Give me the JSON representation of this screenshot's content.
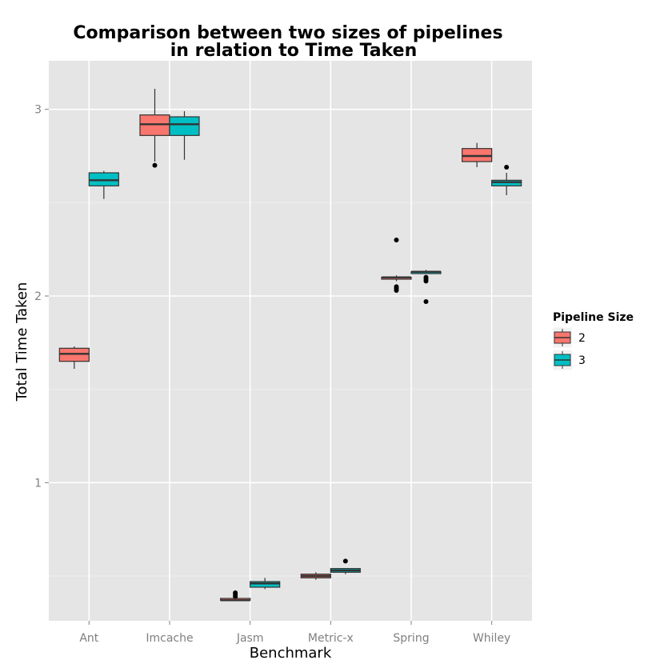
{
  "chart_data": {
    "type": "boxplot",
    "title": "Comparison between two sizes of pipelines\nin relation to Time Taken",
    "title_lines": [
      "Comparison between two sizes of pipelines",
      "in relation to Time Taken"
    ],
    "xlabel": "Benchmark",
    "ylabel": "Total Time Taken",
    "categories": [
      "Ant",
      "Imcache",
      "Jasm",
      "Metric-x",
      "Spring",
      "Whiley"
    ],
    "ylim": [
      0.26,
      3.26
    ],
    "yticks": [
      1,
      2,
      3
    ],
    "ytick_labels": [
      "1",
      "2",
      "3"
    ],
    "grid": true,
    "legend": {
      "title": "Pipeline Size",
      "placement": "right"
    },
    "series": [
      {
        "name": "2",
        "color": "#F8766D",
        "boxes": [
          {
            "category": "Ant",
            "min": 1.61,
            "q1": 1.65,
            "median": 1.69,
            "q3": 1.72,
            "max": 1.73,
            "outliers": []
          },
          {
            "category": "Imcache",
            "min": 2.72,
            "q1": 2.86,
            "median": 2.92,
            "q3": 2.97,
            "max": 3.11,
            "outliers": [
              2.7
            ]
          },
          {
            "category": "Jasm",
            "min": 0.37,
            "q1": 0.37,
            "median": 0.37,
            "q3": 0.38,
            "max": 0.38,
            "outliers": [
              0.39,
              0.4,
              0.41
            ]
          },
          {
            "category": "Metric-x",
            "min": 0.48,
            "q1": 0.49,
            "median": 0.5,
            "q3": 0.51,
            "max": 0.52,
            "outliers": []
          },
          {
            "category": "Spring",
            "min": 2.08,
            "q1": 2.09,
            "median": 2.1,
            "q3": 2.1,
            "max": 2.11,
            "outliers": [
              2.3,
              2.05,
              2.04,
              2.03
            ]
          },
          {
            "category": "Whiley",
            "min": 2.69,
            "q1": 2.72,
            "median": 2.75,
            "q3": 2.79,
            "max": 2.82,
            "outliers": []
          }
        ]
      },
      {
        "name": "3",
        "color": "#00BFC4",
        "boxes": [
          {
            "category": "Ant",
            "min": 2.52,
            "q1": 2.59,
            "median": 2.62,
            "q3": 2.66,
            "max": 2.67,
            "outliers": []
          },
          {
            "category": "Imcache",
            "min": 2.73,
            "q1": 2.86,
            "median": 2.92,
            "q3": 2.96,
            "max": 2.99,
            "outliers": []
          },
          {
            "category": "Jasm",
            "min": 0.43,
            "q1": 0.44,
            "median": 0.46,
            "q3": 0.47,
            "max": 0.49,
            "outliers": []
          },
          {
            "category": "Metric-x",
            "min": 0.51,
            "q1": 0.52,
            "median": 0.53,
            "q3": 0.54,
            "max": 0.54,
            "outliers": [
              0.58
            ]
          },
          {
            "category": "Spring",
            "min": 2.12,
            "q1": 2.12,
            "median": 2.13,
            "q3": 2.13,
            "max": 2.14,
            "outliers": [
              2.1,
              2.09,
              2.08,
              1.97
            ]
          },
          {
            "category": "Whiley",
            "min": 2.54,
            "q1": 2.59,
            "median": 2.61,
            "q3": 2.62,
            "max": 2.66,
            "outliers": [
              2.69
            ]
          }
        ]
      }
    ]
  }
}
